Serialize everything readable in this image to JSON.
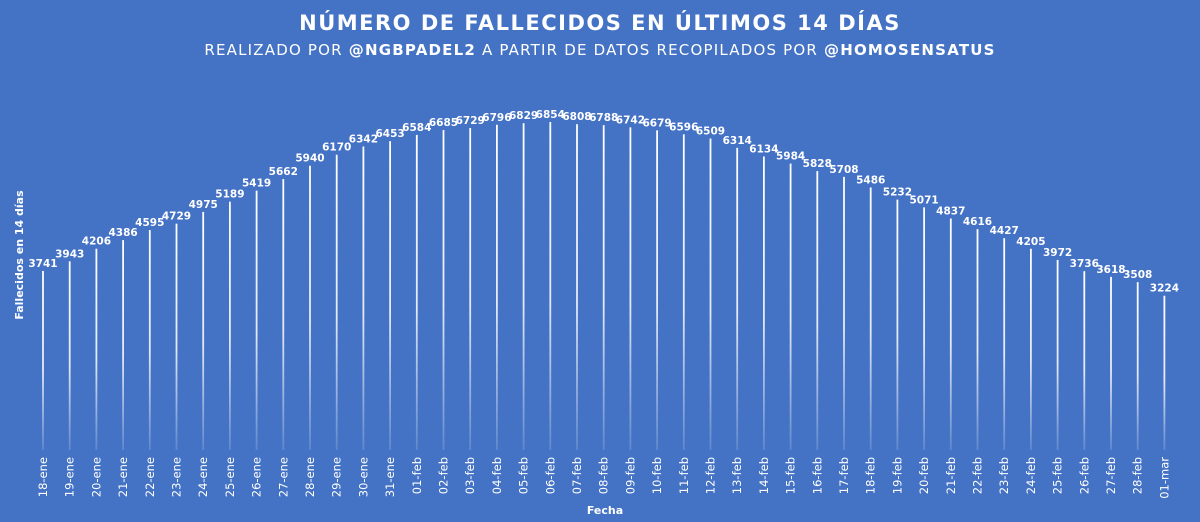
{
  "chart_data": {
    "type": "bar",
    "title": "NÚMERO DE FALLECIDOS EN ÚLTIMOS 14 DÍAS",
    "subtitle": {
      "prefix": "REALIZADO POR ",
      "author": "@NGBPADEL2",
      "middle": " A PARTIR DE DATOS RECOPILADOS POR ",
      "source": "@HOMOSENSATUS"
    },
    "xlabel": "Fecha",
    "ylabel": "Fallecidos en 14 días",
    "ylim": [
      0,
      7000
    ],
    "grid": false,
    "categories": [
      "18-ene",
      "19-ene",
      "20-ene",
      "21-ene",
      "22-ene",
      "23-ene",
      "24-ene",
      "25-ene",
      "26-ene",
      "27-ene",
      "28-ene",
      "29-ene",
      "30-ene",
      "31-ene",
      "01-feb",
      "02-feb",
      "03-feb",
      "04-feb",
      "05-feb",
      "06-feb",
      "07-feb",
      "08-feb",
      "09-feb",
      "10-feb",
      "11-feb",
      "12-feb",
      "13-feb",
      "14-feb",
      "15-feb",
      "16-feb",
      "17-feb",
      "18-feb",
      "19-feb",
      "20-feb",
      "21-feb",
      "22-feb",
      "23-feb",
      "24-feb",
      "25-feb",
      "26-feb",
      "27-feb",
      "28-feb",
      "01-mar"
    ],
    "values": [
      3741,
      3943,
      4206,
      4386,
      4595,
      4729,
      4975,
      5189,
      5419,
      5662,
      5940,
      6170,
      6342,
      6453,
      6584,
      6685,
      6729,
      6796,
      6829,
      6854,
      6808,
      6788,
      6742,
      6679,
      6596,
      6509,
      6314,
      6134,
      5984,
      5828,
      5708,
      5486,
      5232,
      5071,
      4837,
      4616,
      4427,
      4205,
      3972,
      3736,
      3618,
      3508,
      3224
    ],
    "colors": {
      "background": "#4472c4",
      "bar": "#ffffff",
      "text": "#ffffff"
    }
  }
}
